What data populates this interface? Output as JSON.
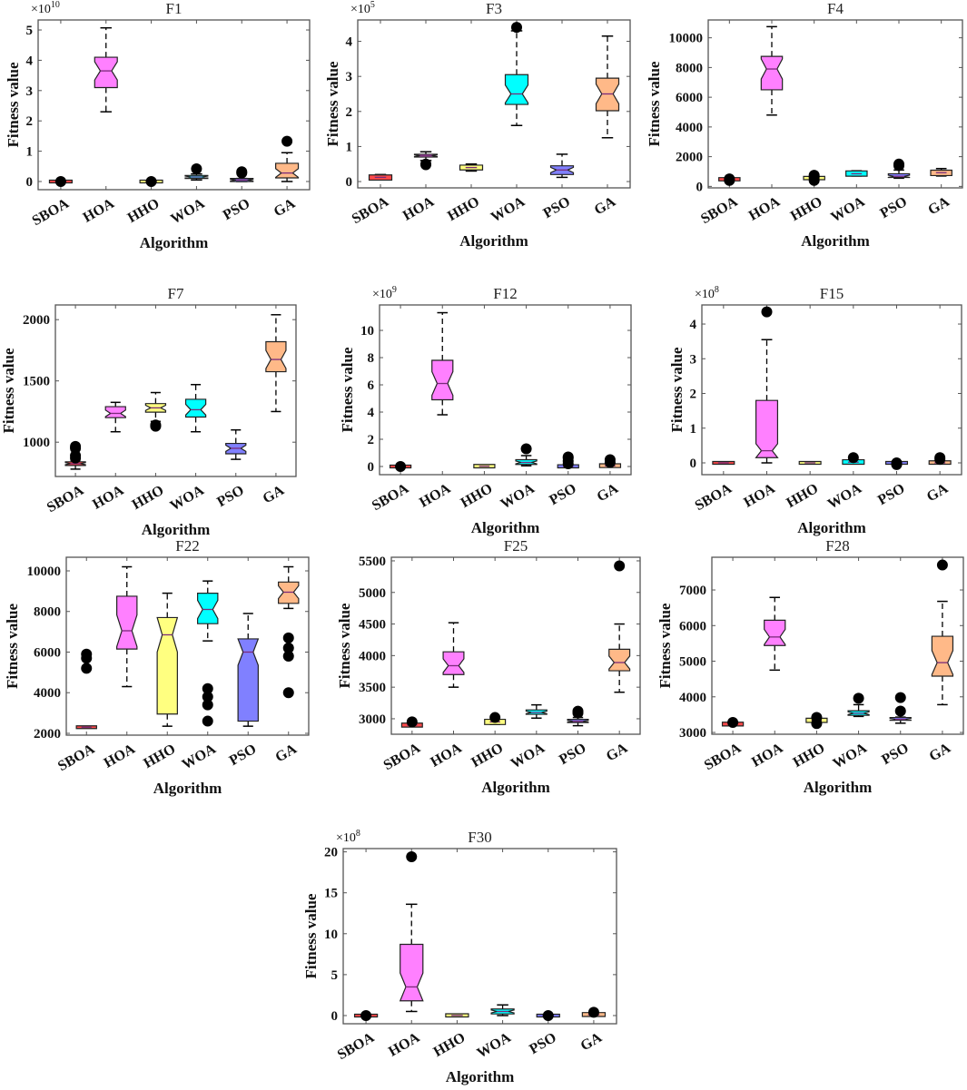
{
  "chart_data": [
    {
      "type": "box",
      "title": "F1",
      "xlabel": "Algorithm",
      "ylabel": "Fitness value",
      "y_multiplier": "×10",
      "y_exponent": "10",
      "ylim": [
        -0.27,
        5.33
      ],
      "yticks": [
        0,
        1,
        2,
        3,
        4,
        5
      ],
      "categories": [
        "SBOA",
        "HOA",
        "HHO",
        "WOA",
        "PSO",
        "GA"
      ],
      "boxes": [
        {
          "q1": 0,
          "median": 0,
          "q3": 0,
          "low": 0,
          "high": 0,
          "outliers": [
            0
          ]
        },
        {
          "q1": 3.1,
          "median": 3.65,
          "q3": 4.1,
          "low": 2.3,
          "high": 5.07,
          "outliers": []
        },
        {
          "q1": 0,
          "median": 0,
          "q3": 0,
          "low": 0,
          "high": 0,
          "outliers": [
            0
          ]
        },
        {
          "q1": 0.1,
          "median": 0.15,
          "q3": 0.2,
          "low": 0.05,
          "high": 0.25,
          "outliers": [
            0.42
          ]
        },
        {
          "q1": 0,
          "median": 0.05,
          "q3": 0.1,
          "low": 0,
          "high": 0.1,
          "outliers": [
            0.28,
            0.32
          ]
        },
        {
          "q1": 0.12,
          "median": 0.28,
          "q3": 0.6,
          "low": 0,
          "high": 0.95,
          "outliers": [
            1.33
          ]
        }
      ]
    },
    {
      "type": "box",
      "title": "F3",
      "xlabel": "Algorithm",
      "ylabel": "Fitness value",
      "y_multiplier": "×10",
      "y_exponent": "5",
      "ylim": [
        -0.18,
        4.61
      ],
      "yticks": [
        0,
        1,
        2,
        3,
        4
      ],
      "categories": [
        "SBOA",
        "HOA",
        "HHO",
        "WOA",
        "PSO",
        "GA"
      ],
      "boxes": [
        {
          "q1": 0.08,
          "median": 0.12,
          "q3": 0.15,
          "low": 0.05,
          "high": 0.2,
          "outliers": []
        },
        {
          "q1": 0.7,
          "median": 0.74,
          "q3": 0.78,
          "low": 0.6,
          "high": 0.85,
          "outliers": [
            0.48,
            0.5
          ]
        },
        {
          "q1": 0.37,
          "median": 0.4,
          "q3": 0.43,
          "low": 0.3,
          "high": 0.5,
          "outliers": []
        },
        {
          "q1": 2.2,
          "median": 2.5,
          "q3": 3.05,
          "low": 1.6,
          "high": 4.3,
          "outliers": [
            4.4
          ]
        },
        {
          "q1": 0.2,
          "median": 0.33,
          "q3": 0.45,
          "low": 0.12,
          "high": 0.78,
          "outliers": []
        },
        {
          "q1": 2.02,
          "median": 2.5,
          "q3": 2.95,
          "low": 1.25,
          "high": 4.15,
          "outliers": []
        }
      ]
    },
    {
      "type": "box",
      "title": "F4",
      "xlabel": "Algorithm",
      "ylabel": "Fitness value",
      "y_multiplier": "",
      "y_exponent": "",
      "ylim": [
        -100,
        11200
      ],
      "yticks": [
        0,
        2000,
        4000,
        6000,
        8000,
        10000
      ],
      "categories": [
        "SBOA",
        "HOA",
        "HHO",
        "WOA",
        "PSO",
        "GA"
      ],
      "boxes": [
        {
          "q1": 460,
          "median": 480,
          "q3": 500,
          "low": 400,
          "high": 550,
          "outliers": [
            400,
            500
          ]
        },
        {
          "q1": 6500,
          "median": 7900,
          "q3": 8750,
          "low": 4800,
          "high": 10750,
          "outliers": []
        },
        {
          "q1": 540,
          "median": 560,
          "q3": 580,
          "low": 500,
          "high": 600,
          "outliers": [
            400,
            600,
            750
          ]
        },
        {
          "q1": 780,
          "median": 850,
          "q3": 950,
          "low": 700,
          "high": 1050,
          "outliers": []
        },
        {
          "q1": 600,
          "median": 680,
          "q3": 850,
          "low": 550,
          "high": 1100,
          "outliers": [
            1400,
            1500
          ]
        },
        {
          "q1": 820,
          "median": 920,
          "q3": 1000,
          "low": 700,
          "high": 1200,
          "outliers": []
        }
      ]
    },
    {
      "type": "box",
      "title": "F7",
      "xlabel": "Algorithm",
      "ylabel": "Fitness value",
      "y_multiplier": "",
      "y_exponent": "",
      "ylim": [
        720,
        2120
      ],
      "yticks": [
        1000,
        1500,
        2000
      ],
      "categories": [
        "SBOA",
        "HOA",
        "HHO",
        "WOA",
        "PSO",
        "GA"
      ],
      "boxes": [
        {
          "q1": 810,
          "median": 825,
          "q3": 840,
          "low": 780,
          "high": 850,
          "outliers": [
            870,
            890,
            950,
            965
          ]
        },
        {
          "q1": 1200,
          "median": 1235,
          "q3": 1290,
          "low": 1085,
          "high": 1325,
          "outliers": []
        },
        {
          "q1": 1245,
          "median": 1280,
          "q3": 1315,
          "low": 1170,
          "high": 1405,
          "outliers": [
            1130,
            1140
          ]
        },
        {
          "q1": 1205,
          "median": 1265,
          "q3": 1350,
          "low": 1085,
          "high": 1470,
          "outliers": []
        },
        {
          "q1": 905,
          "median": 950,
          "q3": 990,
          "low": 860,
          "high": 1100,
          "outliers": []
        },
        {
          "q1": 1575,
          "median": 1675,
          "q3": 1820,
          "low": 1250,
          "high": 2040,
          "outliers": []
        }
      ]
    },
    {
      "type": "box",
      "title": "F12",
      "xlabel": "Algorithm",
      "ylabel": "Fitness value",
      "y_multiplier": "×10",
      "y_exponent": "9",
      "ylim": [
        -0.6,
        11.87
      ],
      "yticks": [
        0,
        2,
        4,
        6,
        8,
        10
      ],
      "categories": [
        "SBOA",
        "HOA",
        "HHO",
        "WOA",
        "PSO",
        "GA"
      ],
      "boxes": [
        {
          "q1": 0,
          "median": 0,
          "q3": 0,
          "low": 0,
          "high": 0,
          "outliers": [
            0
          ]
        },
        {
          "q1": 4.9,
          "median": 6.1,
          "q3": 7.8,
          "low": 3.8,
          "high": 11.3,
          "outliers": []
        },
        {
          "q1": 0,
          "median": 0.02,
          "q3": 0.05,
          "low": 0,
          "high": 0.05,
          "outliers": []
        },
        {
          "q1": 0.15,
          "median": 0.3,
          "q3": 0.5,
          "low": 0.05,
          "high": 0.8,
          "outliers": [
            1.3
          ]
        },
        {
          "q1": 0,
          "median": 0,
          "q3": 0.03,
          "low": 0,
          "high": 0.05,
          "outliers": [
            0.2,
            0.4,
            0.6,
            0.7
          ]
        },
        {
          "q1": 0.02,
          "median": 0.05,
          "q3": 0.1,
          "low": 0,
          "high": 0.2,
          "outliers": [
            0.3,
            0.5
          ]
        }
      ]
    },
    {
      "type": "box",
      "title": "F15",
      "xlabel": "Algorithm",
      "ylabel": "Fitness value",
      "y_multiplier": "×10",
      "y_exponent": "8",
      "ylim": [
        -0.34,
        4.55
      ],
      "yticks": [
        0,
        1,
        2,
        3,
        4
      ],
      "categories": [
        "SBOA",
        "HOA",
        "HHO",
        "WOA",
        "PSO",
        "GA"
      ],
      "boxes": [
        {
          "q1": 0,
          "median": 0,
          "q3": 0,
          "low": 0,
          "high": 0,
          "outliers": []
        },
        {
          "q1": 0.15,
          "median": 0.35,
          "q3": 1.8,
          "low": 0,
          "high": 3.55,
          "outliers": [
            4.35
          ]
        },
        {
          "q1": 0,
          "median": 0,
          "q3": 0,
          "low": 0,
          "high": 0,
          "outliers": []
        },
        {
          "q1": 0,
          "median": 0.02,
          "q3": 0.05,
          "low": 0,
          "high": 0.08,
          "outliers": [
            0.15
          ]
        },
        {
          "q1": 0,
          "median": 0,
          "q3": 0,
          "low": 0,
          "high": 0,
          "outliers": [
            0,
            -0.05
          ]
        },
        {
          "q1": 0,
          "median": 0,
          "q3": 0.02,
          "low": 0,
          "high": 0.02,
          "outliers": [
            0.1,
            0.15
          ]
        }
      ]
    },
    {
      "type": "box",
      "title": "F22",
      "xlabel": "Algorithm",
      "ylabel": "Fitness value",
      "y_multiplier": "",
      "y_exponent": "",
      "ylim": [
        1910,
        10670
      ],
      "yticks": [
        2000,
        4000,
        6000,
        8000,
        10000
      ],
      "categories": [
        "SBOA",
        "HOA",
        "HHO",
        "WOA",
        "PSO",
        "GA"
      ],
      "boxes": [
        {
          "q1": 2300,
          "median": 2300,
          "q3": 2300,
          "low": 2300,
          "high": 2300,
          "outliers": [
            5200,
            5700,
            5900
          ]
        },
        {
          "q1": 6150,
          "median": 7050,
          "q3": 8750,
          "low": 4300,
          "high": 10200,
          "outliers": []
        },
        {
          "q1": 2950,
          "median": 6850,
          "q3": 7700,
          "low": 2350,
          "high": 8900,
          "outliers": []
        },
        {
          "q1": 7400,
          "median": 8100,
          "q3": 8900,
          "low": 6550,
          "high": 9500,
          "outliers": [
            2600,
            3400,
            3800,
            4200
          ]
        },
        {
          "q1": 2600,
          "median": 6000,
          "q3": 6650,
          "low": 2350,
          "high": 7900,
          "outliers": []
        },
        {
          "q1": 8400,
          "median": 8950,
          "q3": 9450,
          "low": 8150,
          "high": 10200,
          "outliers": [
            4000,
            5800,
            6200,
            6700
          ]
        }
      ]
    },
    {
      "type": "box",
      "title": "F25",
      "xlabel": "Algorithm",
      "ylabel": "Fitness value",
      "y_multiplier": "",
      "y_exponent": "",
      "ylim": [
        2755,
        5557
      ],
      "yticks": [
        3000,
        3500,
        4000,
        4500,
        5000,
        5500
      ],
      "categories": [
        "SBOA",
        "HOA",
        "HHO",
        "WOA",
        "PSO",
        "GA"
      ],
      "boxes": [
        {
          "q1": 2890,
          "median": 2900,
          "q3": 2910,
          "low": 2880,
          "high": 2930,
          "outliers": [
            2950
          ]
        },
        {
          "q1": 3700,
          "median": 3840,
          "q3": 4060,
          "low": 3500,
          "high": 4520,
          "outliers": []
        },
        {
          "q1": 2930,
          "median": 2950,
          "q3": 2970,
          "low": 2910,
          "high": 2990,
          "outliers": [
            3020
          ]
        },
        {
          "q1": 3070,
          "median": 3100,
          "q3": 3140,
          "low": 3010,
          "high": 3220,
          "outliers": []
        },
        {
          "q1": 2940,
          "median": 2960,
          "q3": 2990,
          "low": 2890,
          "high": 3020,
          "outliers": [
            3090,
            3120
          ]
        },
        {
          "q1": 3760,
          "median": 3890,
          "q3": 4100,
          "low": 3420,
          "high": 4500,
          "outliers": [
            5420
          ]
        }
      ]
    },
    {
      "type": "box",
      "title": "F28",
      "xlabel": "Algorithm",
      "ylabel": "Fitness value",
      "y_multiplier": "",
      "y_exponent": "",
      "ylim": [
        2950,
        7918
      ],
      "yticks": [
        3000,
        4000,
        5000,
        6000,
        7000
      ],
      "categories": [
        "SBOA",
        "HOA",
        "HHO",
        "WOA",
        "PSO",
        "GA"
      ],
      "boxes": [
        {
          "q1": 3220,
          "median": 3240,
          "q3": 3250,
          "low": 3200,
          "high": 3280,
          "outliers": [
            3280
          ]
        },
        {
          "q1": 5440,
          "median": 5680,
          "q3": 6150,
          "low": 4750,
          "high": 6790,
          "outliers": []
        },
        {
          "q1": 3320,
          "median": 3340,
          "q3": 3360,
          "low": 3300,
          "high": 3380,
          "outliers": [
            3250,
            3420
          ]
        },
        {
          "q1": 3480,
          "median": 3540,
          "q3": 3610,
          "low": 3450,
          "high": 3780,
          "outliers": [
            3960
          ]
        },
        {
          "q1": 3340,
          "median": 3370,
          "q3": 3420,
          "low": 3260,
          "high": 3430,
          "outliers": [
            3600,
            3980
          ]
        },
        {
          "q1": 4580,
          "median": 4960,
          "q3": 5700,
          "low": 3780,
          "high": 6680,
          "outliers": [
            7700
          ]
        }
      ]
    },
    {
      "type": "box",
      "title": "F30",
      "xlabel": "Algorithm",
      "ylabel": "Fitness value",
      "y_multiplier": "×10",
      "y_exponent": "8",
      "ylim": [
        -1.0,
        20.4
      ],
      "yticks": [
        0,
        5,
        10,
        15,
        20
      ],
      "categories": [
        "SBOA",
        "HOA",
        "HHO",
        "WOA",
        "PSO",
        "GA"
      ],
      "boxes": [
        {
          "q1": 0,
          "median": 0,
          "q3": 0,
          "low": 0,
          "high": 0,
          "outliers": [
            0
          ]
        },
        {
          "q1": 1.8,
          "median": 3.5,
          "q3": 8.7,
          "low": 0.5,
          "high": 13.6,
          "outliers": [
            19.4
          ]
        },
        {
          "q1": 0,
          "median": 0.02,
          "q3": 0.05,
          "low": 0,
          "high": 0.05,
          "outliers": []
        },
        {
          "q1": 0.2,
          "median": 0.5,
          "q3": 0.8,
          "low": 0,
          "high": 1.3,
          "outliers": []
        },
        {
          "q1": 0,
          "median": 0,
          "q3": 0,
          "low": 0,
          "high": 0,
          "outliers": [
            0
          ]
        },
        {
          "q1": 0.05,
          "median": 0.1,
          "q3": 0.2,
          "low": 0,
          "high": 0.3,
          "outliers": [
            0.4
          ]
        }
      ]
    }
  ],
  "colors": {
    "SBOA": "#ff4a4a",
    "HOA": "#ff80ff",
    "HHO": "#ffff80",
    "WOA": "#00ffff",
    "PSO": "#8080ff",
    "GA": "#ffb988"
  }
}
